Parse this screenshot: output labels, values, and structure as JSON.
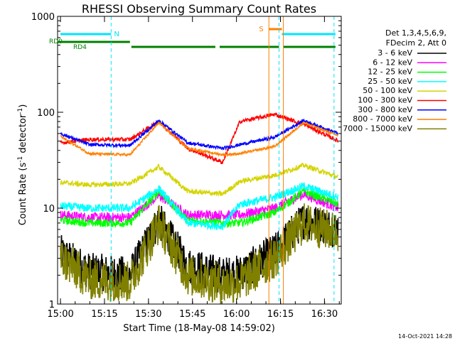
{
  "chart_data": {
    "type": "line",
    "title": "RHESSI Observing Summary Count Rates",
    "xlabel": "Start Time (18-May-08 14:59:02)",
    "ylabel_main": "Count Rate (s",
    "ylabel_exp1": "-1",
    "ylabel_mid": " detector",
    "ylabel_exp2": "-1",
    "ylabel_end": ")",
    "y_scale": "log",
    "ylim": [
      1,
      1000
    ],
    "xlim_minutes": [
      0,
      40
    ],
    "x_ticks": [
      {
        "t": 0.5,
        "label": "15:00"
      },
      {
        "t": 15.5,
        "label": "15:15"
      },
      {
        "t": 30.5,
        "label": "15:30"
      },
      {
        "t": 45.5,
        "label": "15:45"
      },
      {
        "t": 60.5,
        "label": "16:00"
      },
      {
        "t": 75.5,
        "label": "16:15"
      },
      {
        "t": 90.5,
        "label": "16:30"
      }
    ],
    "y_ticks": [
      {
        "v": 1,
        "label": "1"
      },
      {
        "v": 10,
        "label": "10"
      },
      {
        "v": 100,
        "label": "100"
      },
      {
        "v": 1000,
        "label": "1000"
      }
    ],
    "legend": {
      "header1": "Det 1,3,4,5,6,9,",
      "header2": "FDecim 2, Att 0",
      "placement": "right"
    },
    "series": [
      {
        "name": "3 - 6 keV",
        "color": "#000000",
        "smooth": [
          [
            0,
            3.4
          ],
          [
            10,
            2.2
          ],
          [
            24,
            2.0
          ],
          [
            34,
            7.5
          ],
          [
            44,
            2.5
          ],
          [
            56,
            2.0
          ],
          [
            62,
            2.1
          ],
          [
            74,
            3.5
          ],
          [
            84,
            7.5
          ],
          [
            96,
            6.0
          ]
        ],
        "noise": 0.45
      },
      {
        "name": "6 - 12 keV",
        "color": "#ff00ff",
        "smooth": [
          [
            0,
            8.5
          ],
          [
            10,
            8.0
          ],
          [
            24,
            8.0
          ],
          [
            34,
            13.5
          ],
          [
            44,
            8.5
          ],
          [
            56,
            8.5
          ],
          [
            62,
            8.5
          ],
          [
            74,
            10
          ],
          [
            84,
            14
          ],
          [
            96,
            10
          ]
        ],
        "noise": 0.12
      },
      {
        "name": "12 - 25 keV",
        "color": "#00ff00",
        "smooth": [
          [
            0,
            7.5
          ],
          [
            10,
            7.0
          ],
          [
            24,
            7.0
          ],
          [
            34,
            15
          ],
          [
            44,
            7.5
          ],
          [
            56,
            7.0
          ],
          [
            62,
            7.0
          ],
          [
            74,
            9
          ],
          [
            84,
            15
          ],
          [
            96,
            11
          ]
        ],
        "noise": 0.1
      },
      {
        "name": "25 - 50 keV",
        "color": "#00ffff",
        "smooth": [
          [
            0,
            10.5
          ],
          [
            10,
            10.0
          ],
          [
            24,
            10.0
          ],
          [
            34,
            16
          ],
          [
            44,
            7.0
          ],
          [
            56,
            6.5
          ],
          [
            62,
            11
          ],
          [
            74,
            13
          ],
          [
            84,
            17
          ],
          [
            96,
            13
          ]
        ],
        "noise": 0.1
      },
      {
        "name": "50 - 100 keV",
        "color": "#d4d400",
        "smooth": [
          [
            0,
            18.5
          ],
          [
            10,
            17.5
          ],
          [
            24,
            18
          ],
          [
            34,
            27
          ],
          [
            44,
            15
          ],
          [
            56,
            14
          ],
          [
            62,
            19
          ],
          [
            74,
            22
          ],
          [
            84,
            28
          ],
          [
            96,
            21
          ]
        ],
        "noise": 0.06
      },
      {
        "name": "100 - 300 keV",
        "color": "#ff0000",
        "smooth": [
          [
            0,
            48
          ],
          [
            10,
            52
          ],
          [
            24,
            52
          ],
          [
            34,
            80
          ],
          [
            44,
            42
          ],
          [
            56,
            30
          ],
          [
            62,
            80
          ],
          [
            74,
            95
          ],
          [
            84,
            75
          ],
          [
            96,
            50
          ]
        ],
        "noise": 0.05
      },
      {
        "name": "300 - 800 keV",
        "color": "#0000ff",
        "smooth": [
          [
            0,
            60
          ],
          [
            10,
            46
          ],
          [
            24,
            45
          ],
          [
            34,
            82
          ],
          [
            44,
            48
          ],
          [
            56,
            42
          ],
          [
            62,
            46
          ],
          [
            74,
            55
          ],
          [
            84,
            82
          ],
          [
            96,
            60
          ]
        ],
        "noise": 0.04
      },
      {
        "name": "800 - 7000 keV",
        "color": "#ff8000",
        "smooth": [
          [
            0,
            56
          ],
          [
            10,
            37
          ],
          [
            24,
            36
          ],
          [
            34,
            78
          ],
          [
            44,
            42
          ],
          [
            56,
            36
          ],
          [
            62,
            37
          ],
          [
            74,
            44
          ],
          [
            84,
            78
          ],
          [
            96,
            57
          ]
        ],
        "noise": 0.03
      },
      {
        "name": "7000 - 15000 keV",
        "color": "#808000",
        "smooth": [
          [
            0,
            3.0
          ],
          [
            10,
            1.8
          ],
          [
            24,
            1.7
          ],
          [
            34,
            7.0
          ],
          [
            44,
            2.0
          ],
          [
            56,
            1.6
          ],
          [
            62,
            1.7
          ],
          [
            74,
            3.0
          ],
          [
            84,
            7.0
          ],
          [
            96,
            5.5
          ]
        ],
        "noise": 0.5
      }
    ],
    "flags": {
      "saa_segments": [
        [
          0,
          17.5
        ],
        [
          76.5,
          95
        ]
      ],
      "saa_label": "N",
      "night_segments": [
        [
          -3,
          24
        ],
        [
          24.5,
          53.5
        ],
        [
          55,
          75.5
        ],
        [
          77,
          95
        ]
      ],
      "rd_labels": [
        "RD0",
        "RD4"
      ],
      "flare_segment": [
        72,
        76.5
      ],
      "flare_label": "S"
    },
    "vlines": {
      "cyan": [
        17.5,
        75.5,
        94.5
      ],
      "orange": [
        72,
        77
      ]
    }
  },
  "footer": {
    "timestamp": "14-Oct-2021 14:28"
  }
}
